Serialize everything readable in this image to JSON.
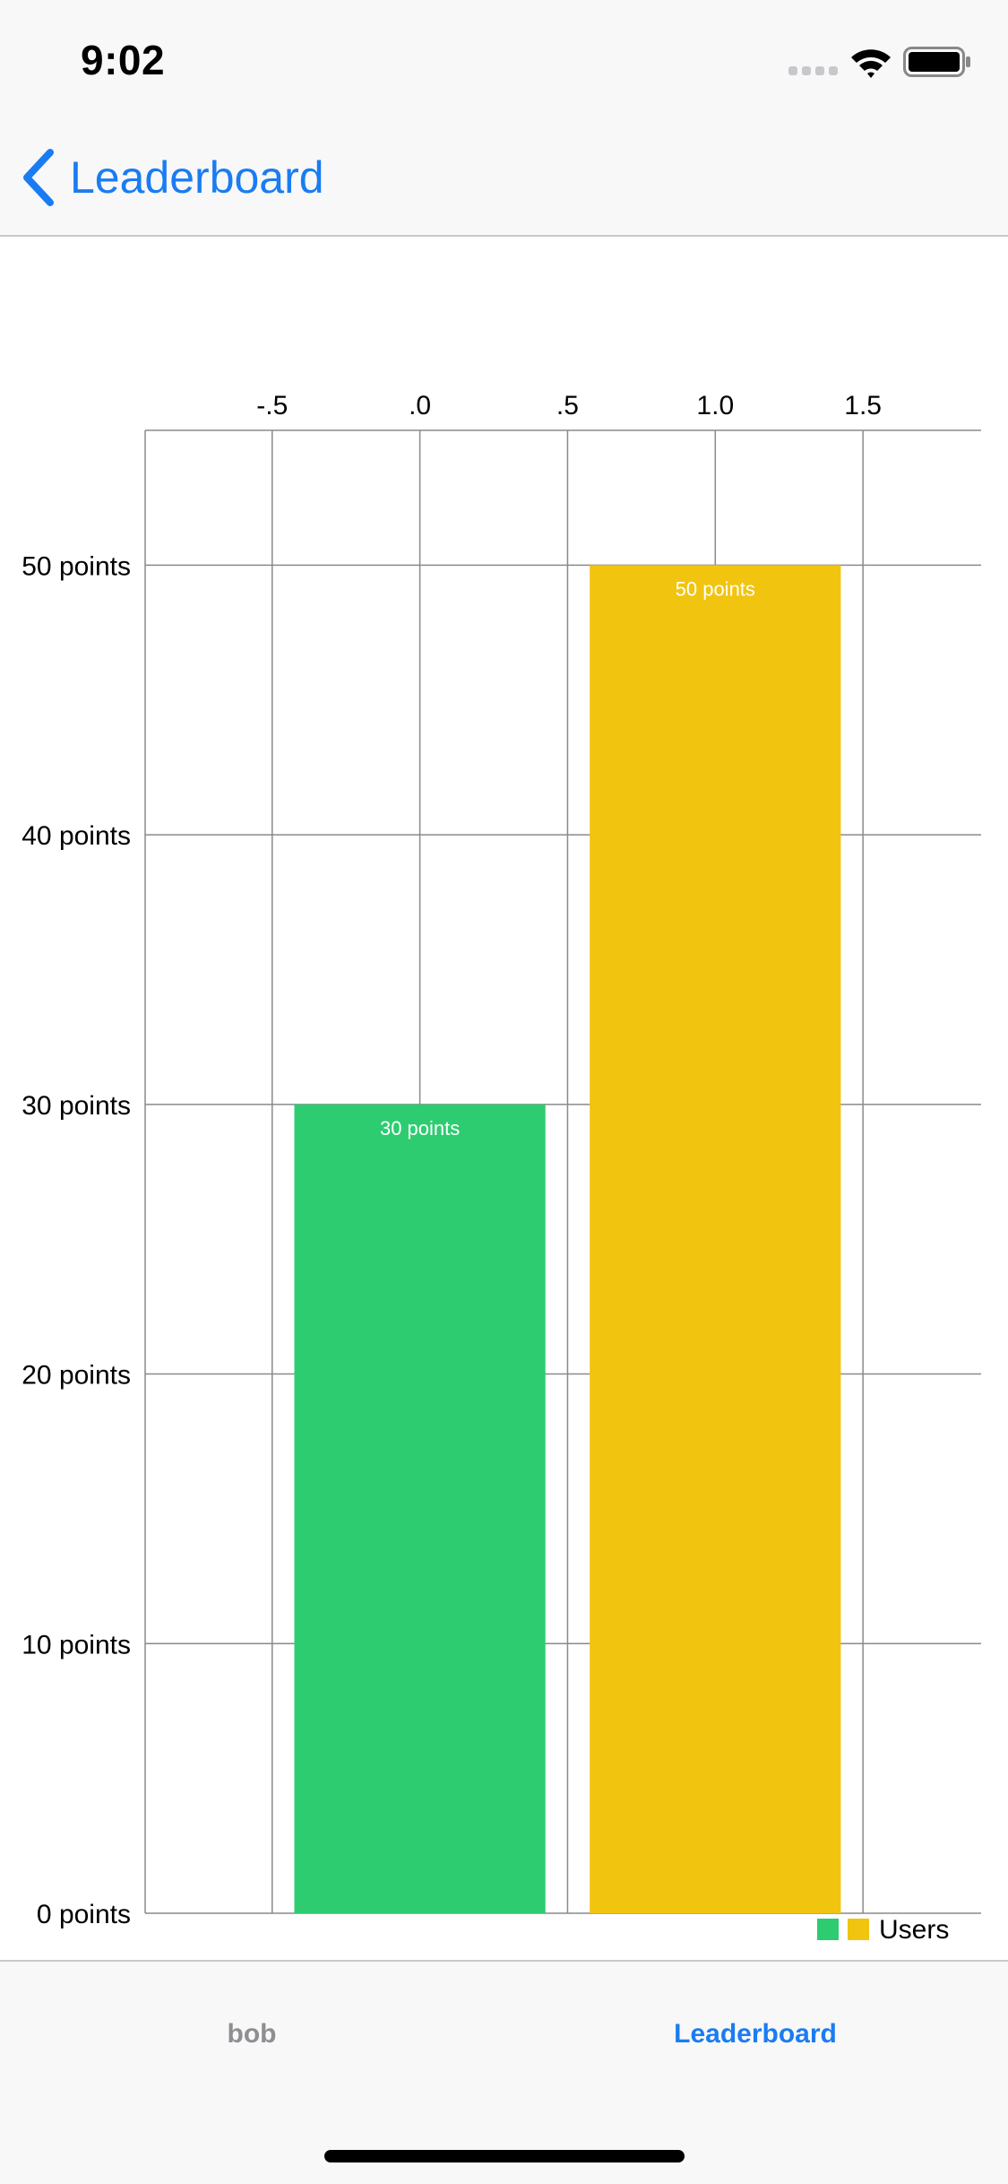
{
  "status_bar": {
    "time": "9:02"
  },
  "nav": {
    "back_label": "Leaderboard"
  },
  "tabs": [
    {
      "label": "bob",
      "active": false
    },
    {
      "label": "Leaderboard",
      "active": true
    }
  ],
  "colors": {
    "accent": "#1a7cf2",
    "inactive_tab": "#8e8e93"
  },
  "chart_data": {
    "type": "bar",
    "title": "",
    "xlabel": "",
    "ylabel": "",
    "x_ticks": [
      "-.5",
      ".0",
      ".5",
      "1.0",
      "1.5"
    ],
    "y_ticks": [
      "0 points",
      "10 points",
      "20 points",
      "30 points",
      "40 points",
      "50 points"
    ],
    "xlim": [
      -0.93,
      1.9
    ],
    "ylim": [
      0,
      55
    ],
    "x_axis_position": "top",
    "grid": true,
    "bars": [
      {
        "x": 0,
        "value": 30,
        "label": "30 points",
        "color": "#2ecc71"
      },
      {
        "x": 1,
        "value": 50,
        "label": "50 points",
        "color": "#f1c40f"
      }
    ],
    "bar_width": 0.85,
    "legend": {
      "label": "Users",
      "position": "bottom-right",
      "colors": [
        "#2ecc71",
        "#f1c40f"
      ]
    }
  }
}
